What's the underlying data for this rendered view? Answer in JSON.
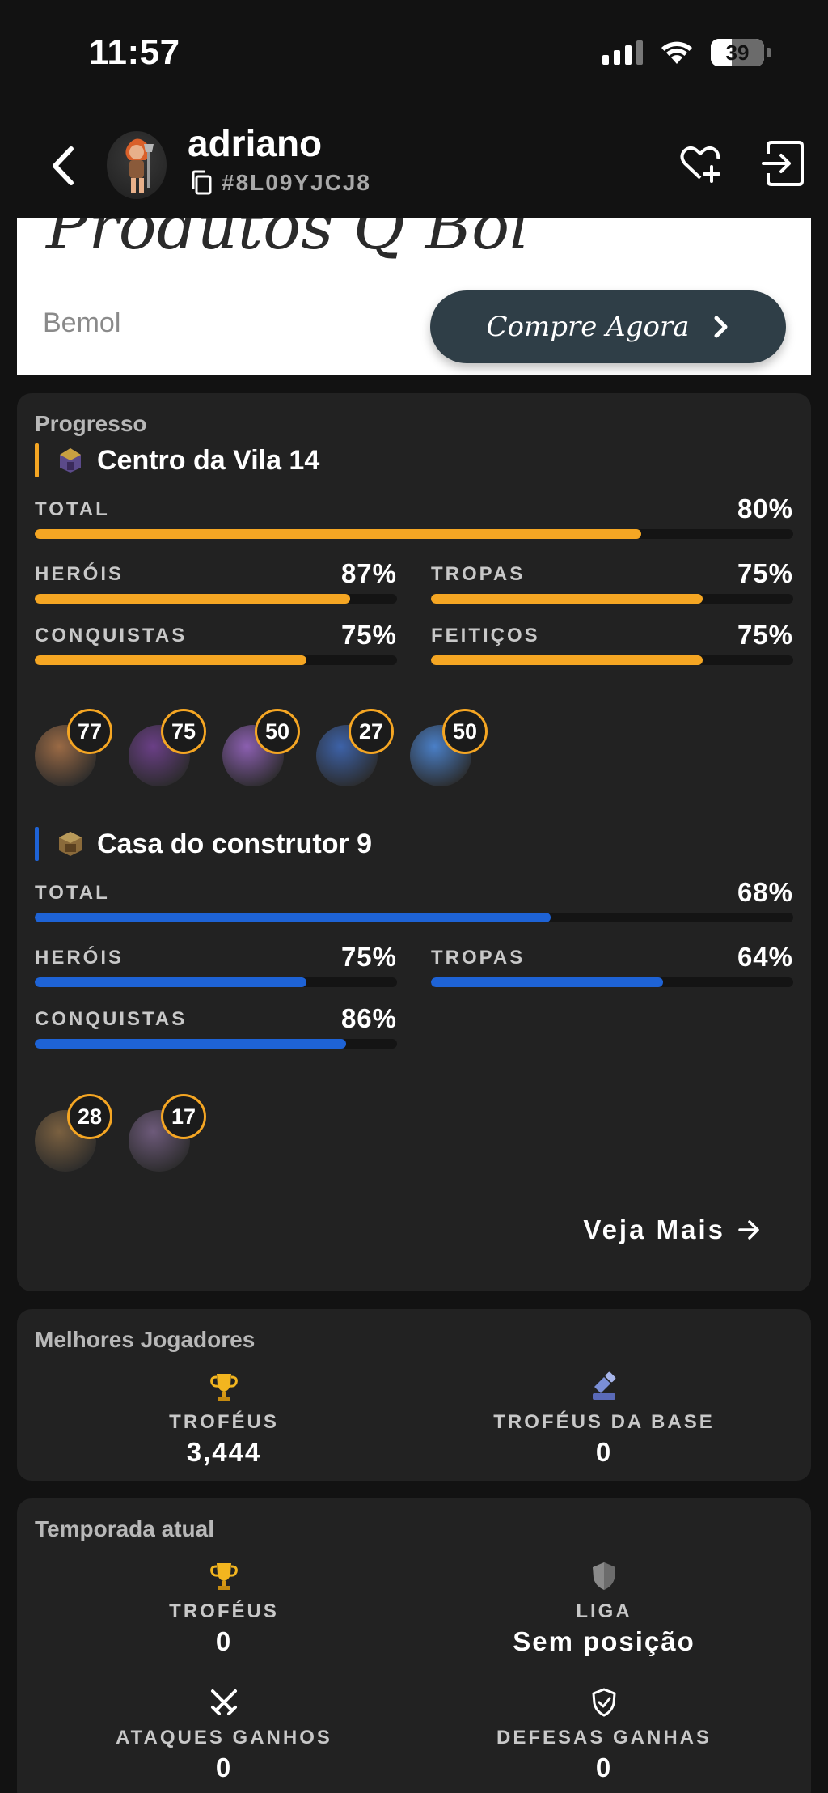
{
  "status_bar": {
    "time": "11:57",
    "battery": "39",
    "battery_level": 0.39,
    "icons": [
      "signal-icon",
      "wifi-icon",
      "battery-icon"
    ]
  },
  "header": {
    "player_name": "adriano",
    "player_tag": "#8L09YJCJ8",
    "icons": [
      "back-icon",
      "copy-icon",
      "favorite-add-icon",
      "logout-icon"
    ]
  },
  "ad": {
    "title": "Produtos Q Bol",
    "brand": "Bemol",
    "cta": "Compre Agora"
  },
  "progress": {
    "title": "Progresso",
    "town_hall": {
      "title": "Centro da Vila 14",
      "accent": "#f5a623",
      "total_label": "TOTAL",
      "total_value": "80%",
      "total_fraction": 0.8,
      "stats": [
        {
          "label": "HERÓIS",
          "value": "87%",
          "fraction": 0.87
        },
        {
          "label": "TROPAS",
          "value": "75%",
          "fraction": 0.75
        },
        {
          "label": "CONQUISTAS",
          "value": "75%",
          "fraction": 0.75
        },
        {
          "label": "FEITIÇOS",
          "value": "75%",
          "fraction": 0.75
        }
      ],
      "heroes": [
        {
          "name": "barbarian-king",
          "level": "77",
          "color": "#9a6a45"
        },
        {
          "name": "archer-queen",
          "level": "75",
          "color": "#6a3f86"
        },
        {
          "name": "grand-warden",
          "level": "50",
          "color": "#8b5fb0"
        },
        {
          "name": "royal-champion",
          "level": "27",
          "color": "#3d62a8"
        },
        {
          "name": "minion-prince",
          "level": "50",
          "color": "#4a7fc7"
        }
      ]
    },
    "builder_hall": {
      "title": "Casa do construtor 9",
      "accent": "#1e63d6",
      "total_label": "TOTAL",
      "total_value": "68%",
      "total_fraction": 0.68,
      "stats": [
        {
          "label": "HERÓIS",
          "value": "75%",
          "fraction": 0.75
        },
        {
          "label": "TROPAS",
          "value": "64%",
          "fraction": 0.64
        },
        {
          "label": "CONQUISTAS",
          "value": "86%",
          "fraction": 0.86
        }
      ],
      "heroes": [
        {
          "name": "battle-machine",
          "level": "28",
          "color": "#7a6040"
        },
        {
          "name": "battle-copter",
          "level": "17",
          "color": "#6d5a7a"
        }
      ]
    },
    "see_more": "Veja Mais"
  },
  "best_players": {
    "title": "Melhores Jogadores",
    "items": [
      {
        "label": "TROFÉUS",
        "value": "3,444",
        "icon": "trophy-icon"
      },
      {
        "label": "TROFÉUS DA BASE",
        "value": "0",
        "icon": "builder-trophy-icon"
      }
    ]
  },
  "current_season": {
    "title": "Temporada atual",
    "items": [
      {
        "label": "TROFÉUS",
        "value": "0",
        "icon": "trophy-icon"
      },
      {
        "label": "LIGA",
        "value": "Sem posição",
        "icon": "league-shield-icon"
      },
      {
        "label": "ATAQUES GANHOS",
        "value": "0",
        "icon": "crossed-swords-icon"
      },
      {
        "label": "DEFESAS GANHAS",
        "value": "0",
        "icon": "shield-check-icon"
      }
    ]
  }
}
